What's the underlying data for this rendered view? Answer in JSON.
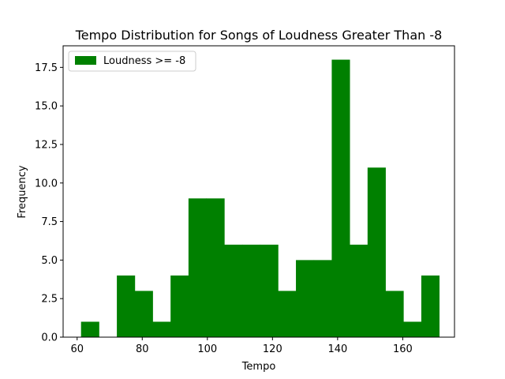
{
  "chart_data": {
    "type": "bar",
    "title": "Tempo Distribution for Songs of Loudness Greater Than -8",
    "xlabel": "Tempo",
    "ylabel": "Frequency",
    "xlim": [
      55.7,
      175.9
    ],
    "ylim": [
      0,
      18.9
    ],
    "xticks": [
      60,
      80,
      100,
      120,
      140,
      160
    ],
    "xtick_labels": [
      "60",
      "80",
      "100",
      "120",
      "140",
      "160"
    ],
    "yticks": [
      0,
      2.5,
      5,
      7.5,
      10,
      12.5,
      15,
      17.5
    ],
    "ytick_labels": [
      "0.0",
      "2.5",
      "5.0",
      "7.5",
      "10.0",
      "12.5",
      "15.0",
      "17.5"
    ],
    "bin_edges": [
      61.2,
      66.7,
      72.2,
      77.7,
      83.2,
      88.7,
      94.2,
      99.7,
      105.2,
      110.7,
      116.2,
      121.7,
      127.2,
      132.7,
      138.2,
      143.7,
      149.2,
      154.7,
      160.2,
      165.7,
      171.2
    ],
    "counts": [
      1,
      0,
      4,
      3,
      1,
      4,
      9,
      9,
      6,
      6,
      6,
      3,
      5,
      5,
      18,
      6,
      11,
      3,
      1,
      4
    ],
    "color": "#008000",
    "legend": {
      "position": "upper-left",
      "label": "Loudness >= -8"
    },
    "grid": false
  }
}
